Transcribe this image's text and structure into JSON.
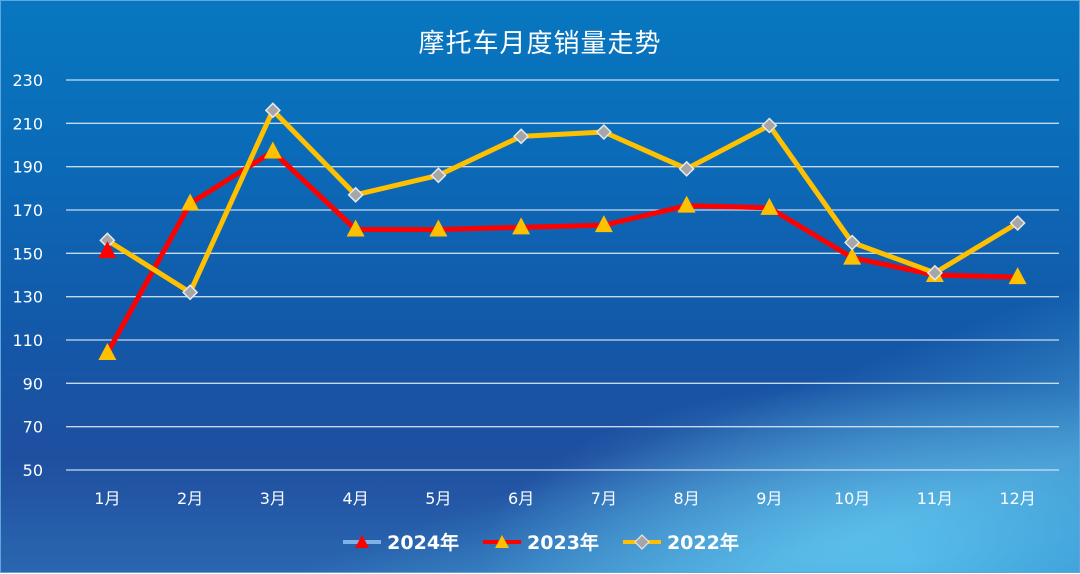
{
  "title": "摩托车月度销量走势",
  "colors": {
    "grid": "#d9e8f5",
    "axis_text": "#ffffff",
    "line_2024": "#7fb2e5",
    "marker_2024": "#ff0000",
    "line_2023": "#ff0000",
    "marker_2023": "#ffc000",
    "line_2022": "#ffc000",
    "marker_2022": "#a6a6a6"
  },
  "legend": [
    {
      "label": "2024年",
      "line_color": "#7fb2e5",
      "marker": "triangle",
      "marker_color": "#ff0000"
    },
    {
      "label": "2023年",
      "line_color": "#ff0000",
      "marker": "triangle",
      "marker_color": "#ffc000"
    },
    {
      "label": "2022年",
      "line_color": "#ffc000",
      "marker": "diamond",
      "marker_color": "#a6a6a6"
    }
  ],
  "chart_data": {
    "type": "line",
    "title": "摩托车月度销量走势",
    "xlabel": "",
    "ylabel": "",
    "categories": [
      "1月",
      "2月",
      "3月",
      "4月",
      "5月",
      "6月",
      "7月",
      "8月",
      "9月",
      "10月",
      "11月",
      "12月"
    ],
    "yticks": [
      50,
      70,
      90,
      110,
      130,
      150,
      170,
      190,
      210,
      230
    ],
    "ylim": [
      50,
      230
    ],
    "grid": true,
    "legend_position": "bottom",
    "series": [
      {
        "name": "2024年",
        "values": [
          151,
          null,
          null,
          null,
          null,
          null,
          null,
          null,
          null,
          null,
          null,
          null
        ]
      },
      {
        "name": "2023年",
        "values": [
          104,
          173,
          197,
          161,
          161,
          162,
          163,
          172,
          171,
          148,
          140,
          139
        ]
      },
      {
        "name": "2022年",
        "values": [
          156,
          132,
          216,
          177,
          186,
          204,
          206,
          189,
          209,
          155,
          141,
          164
        ]
      }
    ]
  }
}
